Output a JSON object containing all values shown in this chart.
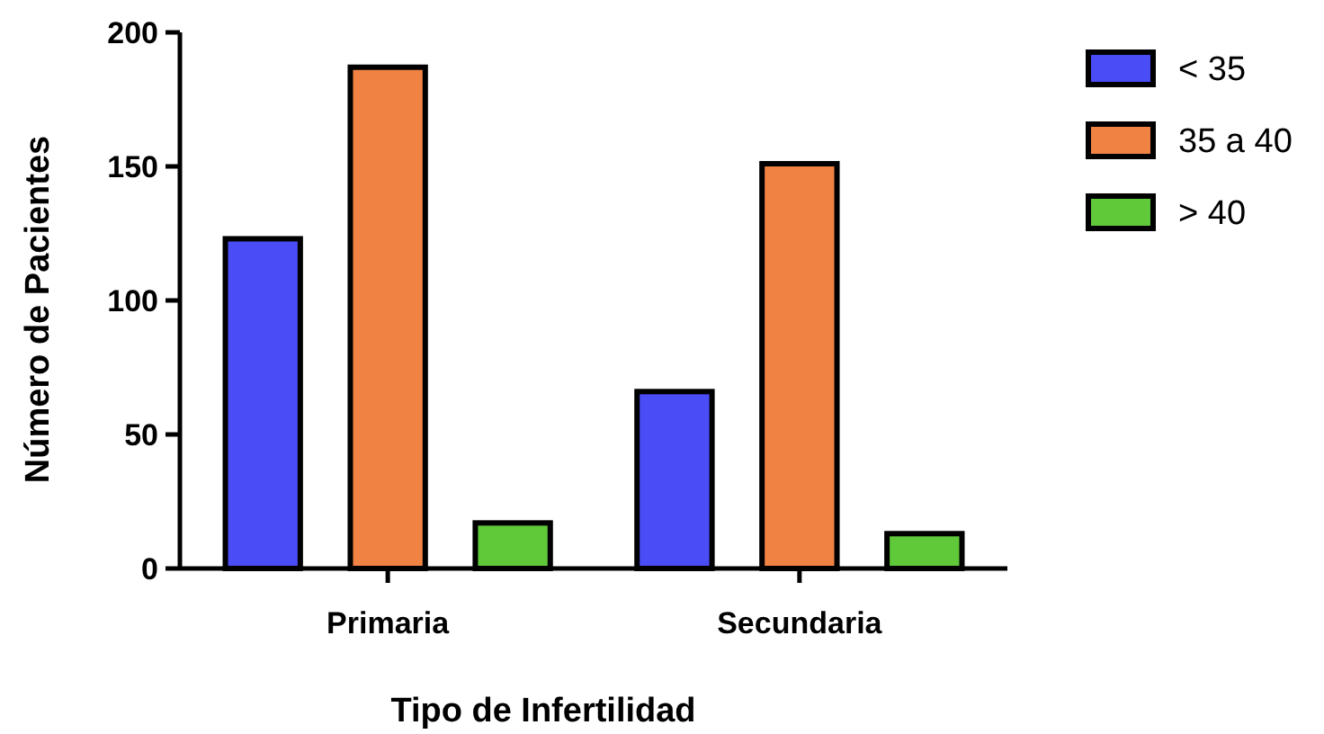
{
  "chart_data": {
    "type": "bar",
    "xlabel": "Tipo de Infertilidad",
    "ylabel": "Número de Pacientes",
    "categories": [
      "Primaria",
      "Secundaria"
    ],
    "series": [
      {
        "name": "< 35",
        "color": "#4a4cf5",
        "values": [
          123,
          66
        ]
      },
      {
        "name": "35 a 40",
        "color": "#f08344",
        "values": [
          187,
          151
        ]
      },
      {
        "name": "> 40",
        "color": "#5fc93a",
        "values": [
          17,
          13
        ]
      }
    ],
    "ylim": [
      0,
      200
    ],
    "yticks": [
      0,
      50,
      100,
      150,
      200
    ],
    "grid": false,
    "legend": "top right"
  }
}
